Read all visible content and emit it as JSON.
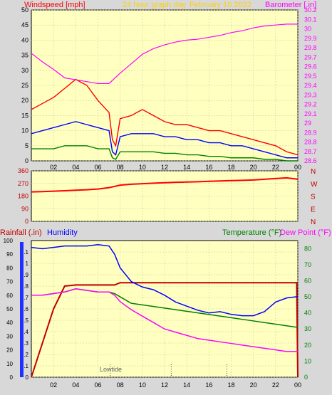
{
  "header": {
    "wind_label": "Windspeed [mph]",
    "title": "24 hour graph day",
    "date": "February 10 2022",
    "baro_label": "Barometer [.in]"
  },
  "bottom_header": {
    "rain_label": "Rainfall (.in)",
    "humidity_label": "Humidity",
    "temp_label": "Temperature (°F)",
    "dew_label": "Dew Point (°F)"
  },
  "annotation": {
    "lowtide": "Lowtide"
  },
  "colors": {
    "plot_bg": "#ffffc0",
    "frame": "#e8e8e8",
    "wind_max": "#ff0000",
    "wind_avg": "#0000ff",
    "wind_min": "#008000",
    "barometer": "#ff00ff",
    "direction": "#ff0000",
    "rain": "#c00000",
    "humidity": "#0000ff",
    "temperature": "#008000",
    "dewpoint": "#ff00ff",
    "dir_labels": "#c00000"
  },
  "chart_data": [
    {
      "type": "line",
      "name": "wind-baro",
      "x_ticks": [
        "02",
        "04",
        "06",
        "08",
        "10",
        "12",
        "14",
        "16",
        "18",
        "20",
        "22",
        "00"
      ],
      "y_left_ticks": [
        "50",
        "45",
        "40",
        "35",
        "30",
        "25",
        "20",
        "15",
        "10",
        "5",
        "0"
      ],
      "y_right_ticks": [
        "30.2",
        "30.1",
        "30",
        "29.9",
        "29.8",
        "29.7",
        "29.6",
        "29.5",
        "29.4",
        "29.3",
        "29.2",
        "29.1",
        "29",
        "28.9",
        "28.8",
        "28.7",
        "28.6"
      ],
      "ylim_left": [
        0,
        50
      ],
      "ylim_right": [
        28.6,
        30.2
      ],
      "xlim": [
        0,
        24
      ],
      "series": [
        {
          "values": [
            [
              0,
              17
            ],
            [
              1,
              19
            ],
            [
              2,
              21
            ],
            [
              3,
              24
            ],
            [
              4,
              27
            ],
            [
              5,
              25
            ],
            [
              6,
              20
            ],
            [
              7,
              16
            ],
            [
              7.3,
              7
            ],
            [
              7.6,
              5
            ],
            [
              8,
              14
            ],
            [
              9,
              15
            ],
            [
              10,
              17
            ],
            [
              11,
              15
            ],
            [
              12,
              13
            ],
            [
              13,
              12
            ],
            [
              14,
              12
            ],
            [
              15,
              11
            ],
            [
              16,
              10
            ],
            [
              17,
              10
            ],
            [
              18,
              9
            ],
            [
              19,
              8
            ],
            [
              20,
              7
            ],
            [
              21,
              6
            ],
            [
              22,
              5
            ],
            [
              23,
              3
            ],
            [
              24,
              2
            ]
          ]
        },
        {
          "values": [
            [
              0,
              9
            ],
            [
              1,
              10
            ],
            [
              2,
              11
            ],
            [
              3,
              12
            ],
            [
              4,
              13
            ],
            [
              5,
              12
            ],
            [
              6,
              11
            ],
            [
              7,
              10
            ],
            [
              7.3,
              3
            ],
            [
              7.6,
              2
            ],
            [
              8,
              8
            ],
            [
              9,
              9
            ],
            [
              10,
              9
            ],
            [
              11,
              9
            ],
            [
              12,
              8
            ],
            [
              13,
              8
            ],
            [
              14,
              7
            ],
            [
              15,
              7
            ],
            [
              16,
              6
            ],
            [
              17,
              6
            ],
            [
              18,
              5
            ],
            [
              19,
              5
            ],
            [
              20,
              4
            ],
            [
              21,
              3
            ],
            [
              22,
              2
            ],
            [
              23,
              1
            ],
            [
              24,
              1
            ]
          ]
        },
        {
          "values": [
            [
              0,
              4
            ],
            [
              1,
              4
            ],
            [
              2,
              4
            ],
            [
              3,
              5
            ],
            [
              4,
              5
            ],
            [
              5,
              5
            ],
            [
              6,
              4
            ],
            [
              7,
              4
            ],
            [
              7.3,
              1
            ],
            [
              7.6,
              0.5
            ],
            [
              8,
              3
            ],
            [
              9,
              3
            ],
            [
              10,
              3
            ],
            [
              11,
              3
            ],
            [
              12,
              2.5
            ],
            [
              13,
              2.5
            ],
            [
              14,
              2
            ],
            [
              15,
              2
            ],
            [
              16,
              1.5
            ],
            [
              17,
              1.5
            ],
            [
              18,
              1
            ],
            [
              19,
              1
            ],
            [
              20,
              1
            ],
            [
              21,
              0.5
            ],
            [
              22,
              0.5
            ],
            [
              23,
              0
            ],
            [
              24,
              0
            ]
          ]
        },
        {
          "values": [
            [
              0,
              29.74
            ],
            [
              1,
              29.65
            ],
            [
              2,
              29.57
            ],
            [
              3,
              29.48
            ],
            [
              4,
              29.46
            ],
            [
              5,
              29.44
            ],
            [
              6,
              29.42
            ],
            [
              7,
              29.42
            ],
            [
              8,
              29.53
            ],
            [
              9,
              29.63
            ],
            [
              10,
              29.73
            ],
            [
              11,
              29.79
            ],
            [
              12,
              29.83
            ],
            [
              13,
              29.86
            ],
            [
              14,
              29.88
            ],
            [
              15,
              29.89
            ],
            [
              16,
              29.91
            ],
            [
              17,
              29.93
            ],
            [
              18,
              29.96
            ],
            [
              19,
              29.98
            ],
            [
              20,
              30.01
            ],
            [
              21,
              30.03
            ],
            [
              22,
              30.04
            ],
            [
              23,
              30.05
            ],
            [
              24,
              30.05
            ]
          ]
        }
      ]
    },
    {
      "type": "scatter",
      "name": "wind-direction",
      "y_ticks": [
        "360",
        "270",
        "180",
        "90",
        "0"
      ],
      "y_labels": [
        "N",
        "W",
        "S",
        "E",
        "N"
      ],
      "ylim": [
        0,
        360
      ],
      "xlim": [
        0,
        24
      ],
      "values": [
        [
          0,
          210
        ],
        [
          1,
          212
        ],
        [
          2,
          215
        ],
        [
          3,
          218
        ],
        [
          4,
          222
        ],
        [
          5,
          225
        ],
        [
          6,
          230
        ],
        [
          7,
          240
        ],
        [
          8,
          258
        ],
        [
          9,
          264
        ],
        [
          10,
          268
        ],
        [
          11,
          272
        ],
        [
          12,
          275
        ],
        [
          13,
          278
        ],
        [
          14,
          280
        ],
        [
          15,
          282
        ],
        [
          16,
          285
        ],
        [
          17,
          288
        ],
        [
          18,
          290
        ],
        [
          19,
          292
        ],
        [
          20,
          295
        ],
        [
          21,
          300
        ],
        [
          22,
          305
        ],
        [
          23,
          310
        ],
        [
          24,
          300
        ]
      ]
    },
    {
      "type": "line",
      "name": "rain-humidity-temp-dew",
      "x_ticks": [
        "02",
        "04",
        "06",
        "08",
        "10",
        "12",
        "14",
        "16",
        "18",
        "20",
        "22",
        "00"
      ],
      "y_left_humidity": [
        "100",
        "90",
        "80",
        "70",
        "60",
        "50",
        "40",
        "30",
        "20",
        "10",
        "0"
      ],
      "y_left_rain": [
        "1.1",
        "1",
        "0.9",
        "0.8",
        "0.7",
        "0.6",
        "0.5",
        "0.4",
        "0.3",
        "0.2",
        "0.1",
        "0"
      ],
      "y_right_ticks": [
        "80",
        "70",
        "60",
        "50",
        "40",
        "30",
        "20",
        "10",
        "0"
      ],
      "ylim_rain": [
        0,
        1.2
      ],
      "ylim_right": [
        0,
        85
      ],
      "xlim": [
        0,
        24
      ],
      "series": [
        {
          "values": [
            [
              0,
              0
            ],
            [
              1,
              0.3
            ],
            [
              2,
              0.6
            ],
            [
              3,
              0.8
            ],
            [
              4,
              0.81
            ],
            [
              5,
              0.81
            ],
            [
              6,
              0.81
            ],
            [
              7,
              0.81
            ],
            [
              7.5,
              0.81
            ],
            [
              8,
              0.83
            ],
            [
              8.5,
              0.83
            ],
            [
              10,
              0.83
            ],
            [
              12,
              0.83
            ],
            [
              16,
              0.83
            ],
            [
              20,
              0.83
            ],
            [
              23.9,
              0.83
            ],
            [
              24,
              0
            ]
          ]
        },
        {
          "values": [
            [
              0,
              95
            ],
            [
              1,
              94
            ],
            [
              2,
              95
            ],
            [
              3,
              96
            ],
            [
              4,
              96
            ],
            [
              5,
              96
            ],
            [
              6,
              97
            ],
            [
              7,
              96
            ],
            [
              7.5,
              90
            ],
            [
              8,
              80
            ],
            [
              9,
              70
            ],
            [
              10,
              66
            ],
            [
              11,
              64
            ],
            [
              12,
              60
            ],
            [
              13,
              55
            ],
            [
              14,
              52
            ],
            [
              15,
              49
            ],
            [
              16,
              47
            ],
            [
              17,
              48
            ],
            [
              18,
              46
            ],
            [
              19,
              45
            ],
            [
              20,
              45
            ],
            [
              21,
              48
            ],
            [
              22,
              55
            ],
            [
              23,
              58
            ],
            [
              24,
              59
            ]
          ]
        },
        {
          "values": [
            [
              0,
              51
            ],
            [
              1,
              51
            ],
            [
              2,
              52
            ],
            [
              3,
              53
            ],
            [
              4,
              55
            ],
            [
              5,
              54
            ],
            [
              6,
              53
            ],
            [
              7,
              53
            ],
            [
              7.5,
              52
            ],
            [
              8,
              50
            ],
            [
              9,
              46
            ],
            [
              10,
              45
            ],
            [
              11,
              44
            ],
            [
              12,
              43
            ],
            [
              13,
              42
            ],
            [
              14,
              41
            ],
            [
              15,
              40
            ],
            [
              16,
              39
            ],
            [
              17,
              38
            ],
            [
              18,
              37
            ],
            [
              19,
              36
            ],
            [
              20,
              35
            ],
            [
              21,
              34
            ],
            [
              22,
              33
            ],
            [
              23,
              32
            ],
            [
              24,
              31
            ]
          ]
        },
        {
          "values": [
            [
              0,
              51
            ],
            [
              1,
              51
            ],
            [
              2,
              52
            ],
            [
              3,
              53
            ],
            [
              4,
              55
            ],
            [
              5,
              54
            ],
            [
              6,
              53
            ],
            [
              7,
              53
            ],
            [
              7.5,
              51
            ],
            [
              8,
              47
            ],
            [
              9,
              42
            ],
            [
              10,
              38
            ],
            [
              11,
              34
            ],
            [
              12,
              30
            ],
            [
              13,
              28
            ],
            [
              14,
              26
            ],
            [
              15,
              24
            ],
            [
              16,
              23
            ],
            [
              17,
              22
            ],
            [
              18,
              21
            ],
            [
              19,
              20
            ],
            [
              20,
              19
            ],
            [
              21,
              18
            ],
            [
              22,
              17
            ],
            [
              23,
              16
            ],
            [
              24,
              16
            ]
          ]
        }
      ],
      "markers_x": [
        7.1,
        12.6,
        17.6
      ]
    }
  ]
}
